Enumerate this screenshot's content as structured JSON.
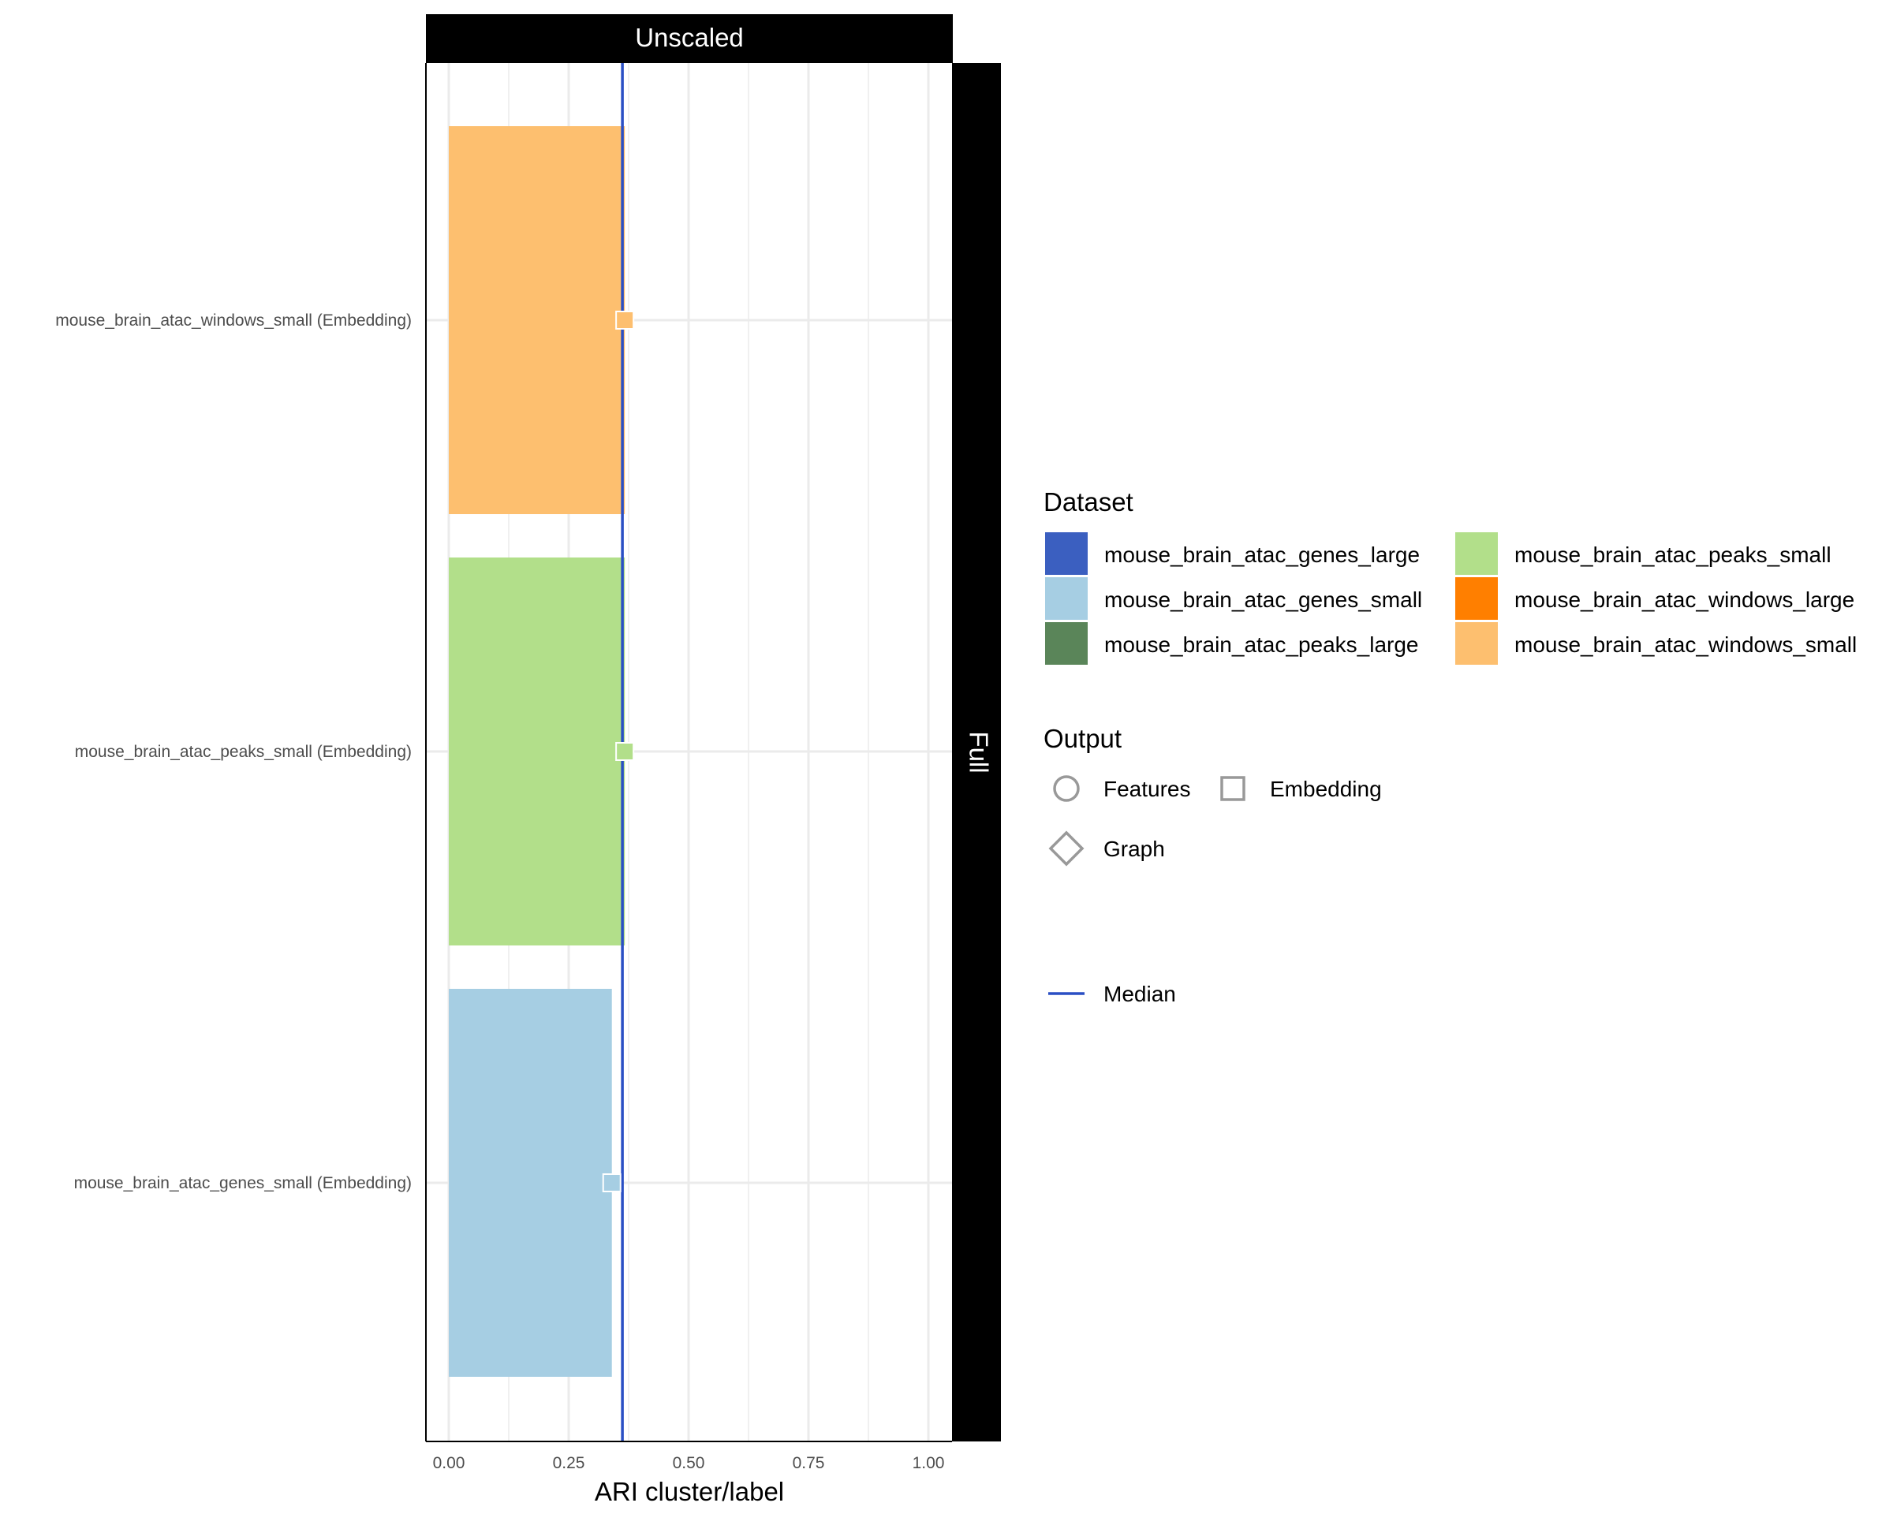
{
  "chart_data": {
    "type": "bar",
    "orientation": "horizontal",
    "facet_top": "Unscaled",
    "facet_right": "Full",
    "xlabel": "ARI cluster/label",
    "ylabel": "",
    "xlim": [
      -0.05,
      1.05
    ],
    "x_ticks": [
      0,
      0.25,
      0.5,
      0.75,
      1.0
    ],
    "x_tick_labels": [
      "0.00",
      "0.25",
      "0.50",
      "0.75",
      "1.00"
    ],
    "grid": true,
    "categories": [
      "mouse_brain_atac_windows_small (Embedding)",
      "mouse_brain_atac_peaks_small (Embedding)",
      "mouse_brain_atac_genes_small (Embedding)"
    ],
    "bars": [
      {
        "category": "mouse_brain_atac_windows_small (Embedding)",
        "value": 0.367,
        "dataset": "mouse_brain_atac_windows_small",
        "output": "Embedding",
        "color": "#FDBF6F"
      },
      {
        "category": "mouse_brain_atac_peaks_small (Embedding)",
        "value": 0.367,
        "dataset": "mouse_brain_atac_peaks_small",
        "output": "Embedding",
        "color": "#B2DF8A"
      },
      {
        "category": "mouse_brain_atac_genes_small (Embedding)",
        "value": 0.34,
        "dataset": "mouse_brain_atac_genes_small",
        "output": "Embedding",
        "color": "#A6CEE3"
      }
    ],
    "median": 0.362,
    "median_color": "#2A4FC4",
    "legend_position": "right",
    "legend": {
      "dataset_title": "Dataset",
      "datasets": [
        {
          "label": "mouse_brain_atac_genes_large",
          "color": "#3B5FC0"
        },
        {
          "label": "mouse_brain_atac_peaks_small",
          "color": "#B2DF8A"
        },
        {
          "label": "mouse_brain_atac_genes_small",
          "color": "#A6CEE3"
        },
        {
          "label": "mouse_brain_atac_windows_large",
          "color": "#FF7F00"
        },
        {
          "label": "mouse_brain_atac_peaks_large",
          "color": "#5A8559"
        },
        {
          "label": "mouse_brain_atac_windows_small",
          "color": "#FDBF6F"
        }
      ],
      "output_title": "Output",
      "outputs": [
        {
          "label": "Features",
          "shape": "circle"
        },
        {
          "label": "Embedding",
          "shape": "square"
        },
        {
          "label": "Graph",
          "shape": "diamond"
        }
      ],
      "median_label": "Median"
    }
  }
}
